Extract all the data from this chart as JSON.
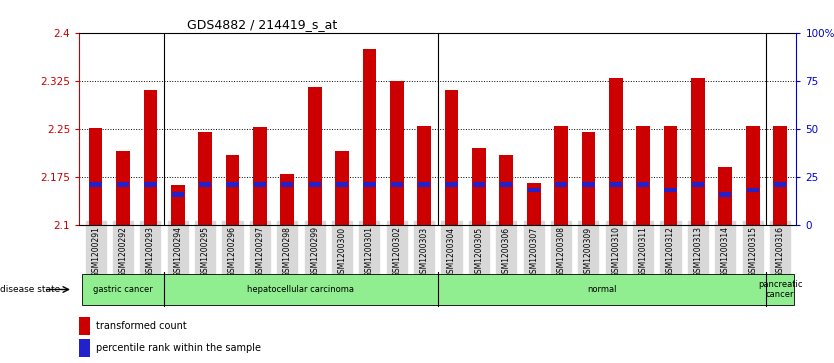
{
  "title": "GDS4882 / 214419_s_at",
  "samples": [
    "GSM1200291",
    "GSM1200292",
    "GSM1200293",
    "GSM1200294",
    "GSM1200295",
    "GSM1200296",
    "GSM1200297",
    "GSM1200298",
    "GSM1200299",
    "GSM1200300",
    "GSM1200301",
    "GSM1200302",
    "GSM1200303",
    "GSM1200304",
    "GSM1200305",
    "GSM1200306",
    "GSM1200307",
    "GSM1200308",
    "GSM1200309",
    "GSM1200310",
    "GSM1200311",
    "GSM1200312",
    "GSM1200313",
    "GSM1200314",
    "GSM1200315",
    "GSM1200316"
  ],
  "transformed_count": [
    2.252,
    2.215,
    2.31,
    2.162,
    2.245,
    2.21,
    2.253,
    2.18,
    2.315,
    2.215,
    2.375,
    2.325,
    2.255,
    2.31,
    2.22,
    2.21,
    2.165,
    2.255,
    2.245,
    2.33,
    2.255,
    2.255,
    2.33,
    2.19,
    2.255,
    2.255
  ],
  "percentile_rank": [
    2.163,
    2.163,
    2.163,
    2.148,
    2.163,
    2.163,
    2.163,
    2.163,
    2.163,
    2.163,
    2.163,
    2.163,
    2.163,
    2.163,
    2.163,
    2.163,
    2.155,
    2.163,
    2.163,
    2.163,
    2.163,
    2.155,
    2.163,
    2.148,
    2.155,
    2.163
  ],
  "y_min": 2.1,
  "y_max": 2.4,
  "y_ticks": [
    2.1,
    2.175,
    2.25,
    2.325,
    2.4
  ],
  "right_y_ticks": [
    0,
    25,
    50,
    75,
    100
  ],
  "right_y_labels": [
    "0",
    "25",
    "50",
    "75",
    "100%"
  ],
  "disease_groups": [
    {
      "label": "gastric cancer",
      "start": 0,
      "end": 3
    },
    {
      "label": "hepatocellular carcinoma",
      "start": 3,
      "end": 13
    },
    {
      "label": "normal",
      "start": 13,
      "end": 25
    },
    {
      "label": "pancreatic\ncancer",
      "start": 25,
      "end": 26
    }
  ],
  "bar_color": "#cc0000",
  "blue_color": "#2222cc",
  "bg_color": "#ffffff",
  "tick_label_color": "#cc0000",
  "right_axis_color": "#0000cc",
  "group_color": "#90ee90",
  "group_borders": [
    3,
    13,
    25
  ],
  "bar_width": 0.5
}
